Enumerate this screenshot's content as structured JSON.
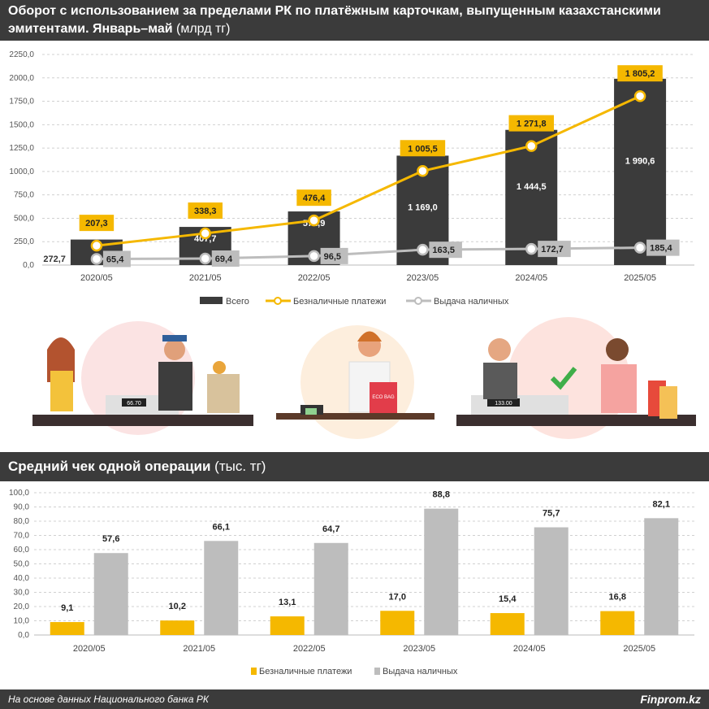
{
  "header1": {
    "title": "Оборот с использованием за пределами РК по платёжным карточкам, выпущенным казахстанскими эмитентами. Январь–май",
    "unit": "(млрд тг)"
  },
  "header2": {
    "title": "Средний чек одной операции",
    "unit": "(тыс. тг)"
  },
  "footer": {
    "source": "На основе данных Национального банка РК",
    "brand": "Finprom.kz"
  },
  "illustrations": {
    "price_tag_1": "66.70",
    "price_tag_2": "133.00",
    "bag_text": "ECO BAG"
  },
  "colors": {
    "dark": "#3b3b3b",
    "yellow": "#f5b800",
    "gray": "#bdbdbd"
  },
  "chart_data": [
    {
      "type": "bar+line",
      "title": "Оборот с использованием за пределами РК по платёжным карточкам, выпущенным казахстанскими эмитентами. Январь–май (млрд тг)",
      "categories": [
        "2020/05",
        "2021/05",
        "2022/05",
        "2023/05",
        "2024/05",
        "2025/05"
      ],
      "ylim": [
        0,
        2250
      ],
      "yticks": [
        "0,0",
        "250,0",
        "500,0",
        "750,0",
        "1000,0",
        "1250,0",
        "1500,0",
        "1750,0",
        "2000,0",
        "2250,0"
      ],
      "grid": true,
      "legend_placement": "bottom",
      "series": [
        {
          "name": "Всего",
          "kind": "bar",
          "values": [
            272.7,
            407.7,
            572.9,
            1169.0,
            1444.5,
            1990.6
          ],
          "labels": [
            "272,7",
            "407,7",
            "572,9",
            "1 169,0",
            "1 444,5",
            "1 990,6"
          ]
        },
        {
          "name": "Безналичные платежи",
          "kind": "line",
          "values": [
            207.3,
            338.3,
            476.4,
            1005.5,
            1271.8,
            1805.2
          ],
          "labels": [
            "207,3",
            "338,3",
            "476,4",
            "1 005,5",
            "1 271,8",
            "1 805,2"
          ]
        },
        {
          "name": "Выдача наличных",
          "kind": "line",
          "values": [
            65.4,
            69.4,
            96.5,
            163.5,
            172.7,
            185.4
          ],
          "labels": [
            "65,4",
            "69,4",
            "96,5",
            "163,5",
            "172,7",
            "185,4"
          ]
        }
      ]
    },
    {
      "type": "bar",
      "title": "Средний чек одной операции (тыс. тг)",
      "categories": [
        "2020/05",
        "2021/05",
        "2022/05",
        "2023/05",
        "2024/05",
        "2025/05"
      ],
      "ylim": [
        0,
        100
      ],
      "yticks": [
        "0,0",
        "10,0",
        "20,0",
        "30,0",
        "40,0",
        "50,0",
        "60,0",
        "70,0",
        "80,0",
        "90,0",
        "100,0"
      ],
      "grid": true,
      "legend_placement": "bottom",
      "series": [
        {
          "name": "Безналичные платежи",
          "values": [
            9.1,
            10.2,
            13.1,
            17.0,
            15.4,
            16.8
          ],
          "labels": [
            "9,1",
            "10,2",
            "13,1",
            "17,0",
            "15,4",
            "16,8"
          ]
        },
        {
          "name": "Выдача наличных",
          "values": [
            57.6,
            66.1,
            64.7,
            88.8,
            75.7,
            82.1
          ],
          "labels": [
            "57,6",
            "66,1",
            "64,7",
            "88,8",
            "75,7",
            "82,1"
          ]
        }
      ]
    }
  ]
}
